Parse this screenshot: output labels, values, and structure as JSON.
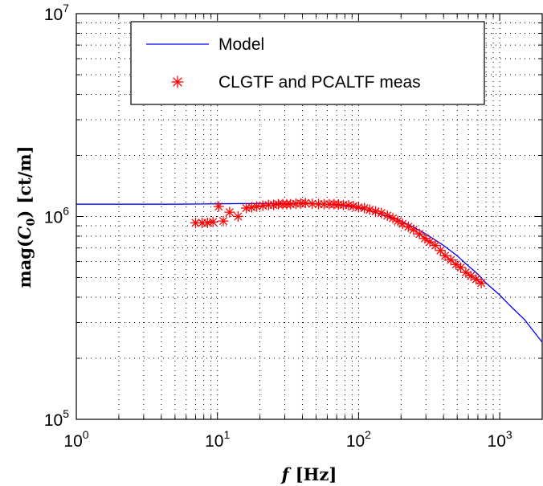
{
  "chart_data": {
    "type": "line",
    "title": "",
    "xlabel": "f [Hz]",
    "ylabel": "mag(C0) [ct/m]",
    "x_scale": "log",
    "y_scale": "log",
    "xlim": [
      1,
      2000
    ],
    "ylim": [
      100000,
      10000000
    ],
    "grid": true,
    "legend_position": "top-left",
    "x_ticks": [
      {
        "base": "10",
        "exp": "0"
      },
      {
        "base": "10",
        "exp": "1"
      },
      {
        "base": "10",
        "exp": "2"
      },
      {
        "base": "10",
        "exp": "3"
      }
    ],
    "y_ticks": [
      {
        "base": "10",
        "exp": "5"
      },
      {
        "base": "10",
        "exp": "6"
      },
      {
        "base": "10",
        "exp": "7"
      }
    ],
    "colors": {
      "model": "#0000ff",
      "meas": "#ff0000"
    },
    "series": [
      {
        "name": "Model",
        "kind": "line",
        "x": [
          1,
          2,
          5,
          10,
          20,
          30,
          40,
          50,
          60,
          70,
          80,
          100,
          120,
          150,
          200,
          250,
          300,
          400,
          500,
          600,
          700,
          800,
          1000,
          1200,
          1500,
          2000
        ],
        "y": [
          1150000,
          1150000,
          1150000,
          1155000,
          1160000,
          1160000,
          1160000,
          1155000,
          1150000,
          1140000,
          1130000,
          1100000,
          1070000,
          1020000,
          950000,
          880000,
          820000,
          720000,
          640000,
          570000,
          520000,
          470000,
          410000,
          360000,
          310000,
          240000
        ]
      },
      {
        "name": "CLGTF and PCALTF meas",
        "kind": "scatter",
        "marker": "asterisk",
        "x": [
          7,
          7.8,
          8.5,
          9.3,
          10.2,
          11,
          12.2,
          14,
          16,
          17.5,
          19,
          21,
          23,
          25,
          27,
          29,
          31,
          33,
          36,
          39,
          42,
          47,
          52,
          57,
          62,
          67,
          72,
          78,
          85,
          92,
          100,
          110,
          120,
          132,
          145,
          160,
          175,
          190,
          205,
          225,
          245,
          270,
          295,
          320,
          350,
          380,
          410,
          450,
          490,
          530,
          575,
          625,
          680,
          740
        ],
        "y": [
          930000,
          930000,
          930000,
          940000,
          1120000,
          950000,
          1050000,
          1000000,
          1100000,
          1110000,
          1120000,
          1130000,
          1140000,
          1140000,
          1150000,
          1150000,
          1150000,
          1150000,
          1155000,
          1160000,
          1165000,
          1155000,
          1150000,
          1150000,
          1150000,
          1150000,
          1145000,
          1140000,
          1135000,
          1125000,
          1110000,
          1100000,
          1080000,
          1060000,
          1040000,
          1010000,
          980000,
          950000,
          920000,
          890000,
          860000,
          820000,
          780000,
          750000,
          720000,
          680000,
          640000,
          610000,
          580000,
          560000,
          530000,
          510000,
          490000,
          470000
        ]
      }
    ]
  }
}
